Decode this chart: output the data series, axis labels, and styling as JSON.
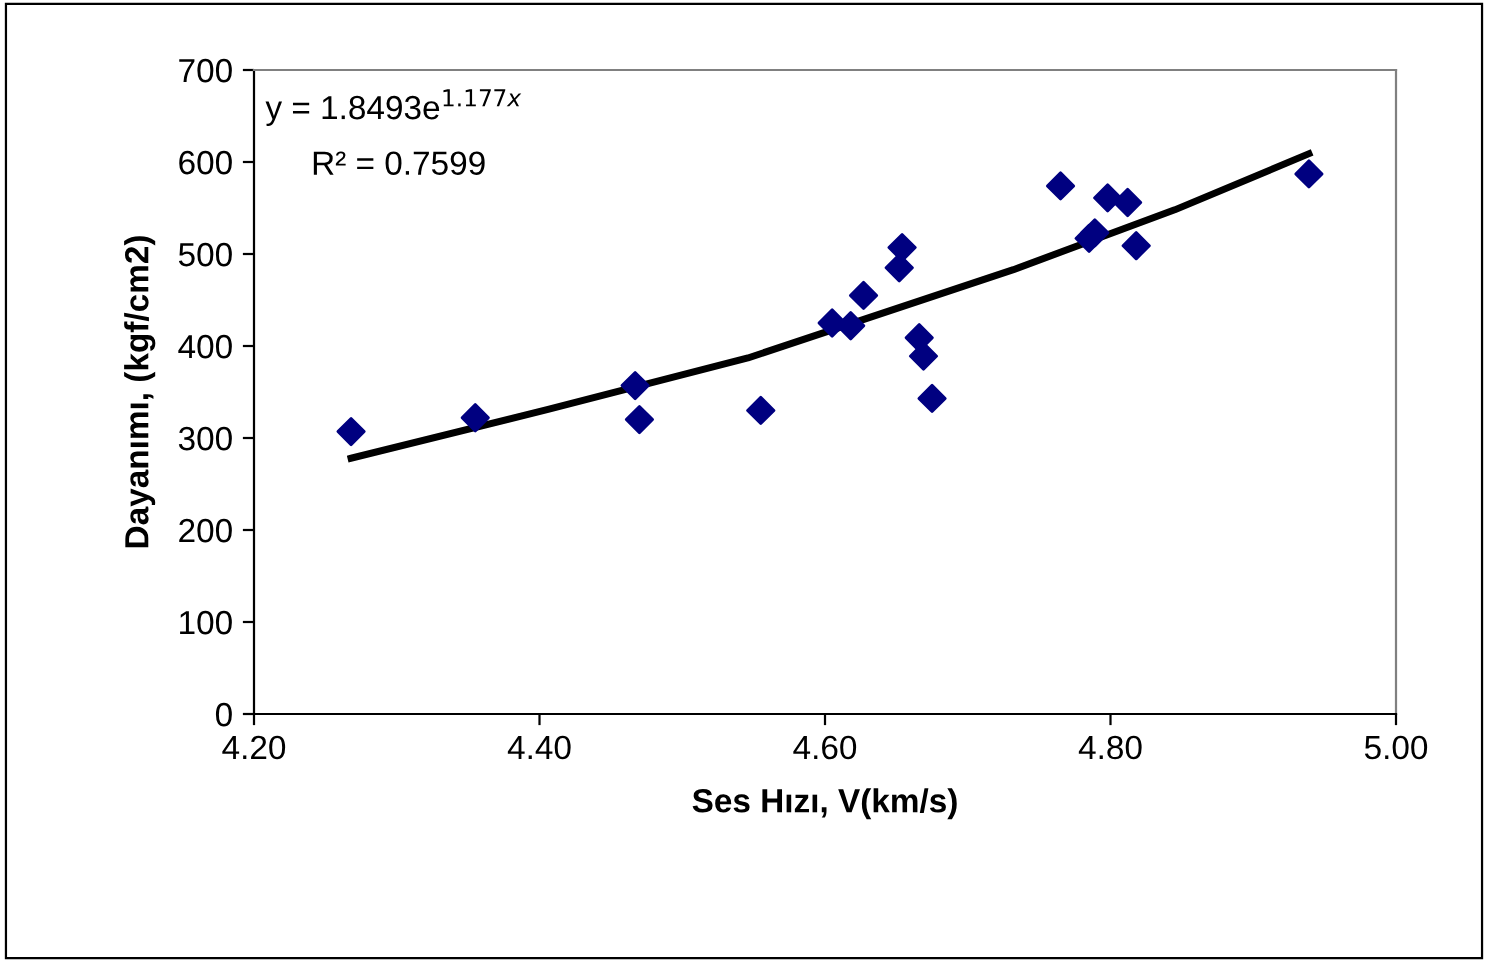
{
  "chart_data": {
    "type": "scatter",
    "xlabel": "Ses Hızı, V(km/s)",
    "ylabel": "Dayanımı, (kgf/cm2)",
    "xlim": [
      4.2,
      5.0
    ],
    "xticks": [
      {
        "value": 4.2,
        "label": "4.20"
      },
      {
        "value": 4.4,
        "label": "4.40"
      },
      {
        "value": 4.6,
        "label": "4.60"
      },
      {
        "value": 4.8,
        "label": "4.80"
      },
      {
        "value": 5.0,
        "label": "5.00"
      }
    ],
    "ylim": [
      0,
      700
    ],
    "yticks": [
      0,
      100,
      200,
      300,
      400,
      500,
      600,
      700
    ],
    "grid": false,
    "legend": false,
    "marker": "diamond",
    "series": [
      {
        "color": "#000080",
        "x": [
          4.268,
          4.355,
          4.467,
          4.47,
          4.555,
          4.605,
          4.618,
          4.627,
          4.652,
          4.654,
          4.666,
          4.669,
          4.675,
          4.765,
          4.785,
          4.789,
          4.798,
          4.812,
          4.818,
          4.939
        ],
        "values": [
          307,
          322,
          357,
          320,
          330,
          425,
          422,
          455,
          485,
          507,
          409,
          389,
          343,
          574,
          517,
          523,
          561,
          556,
          509,
          587
        ]
      },
      {
        "type": "line",
        "color": "#000000",
        "marker": "none",
        "line_style": "solid",
        "x": [
          4.268,
          4.406,
          4.546,
          4.732,
          4.845,
          4.939
        ],
        "values": [
          278,
          331,
          387,
          483,
          548,
          609
        ]
      }
    ],
    "annotations": [
      "y = 1.8493e$^{1.177x}$",
      "R² = 0.7599"
    ]
  }
}
